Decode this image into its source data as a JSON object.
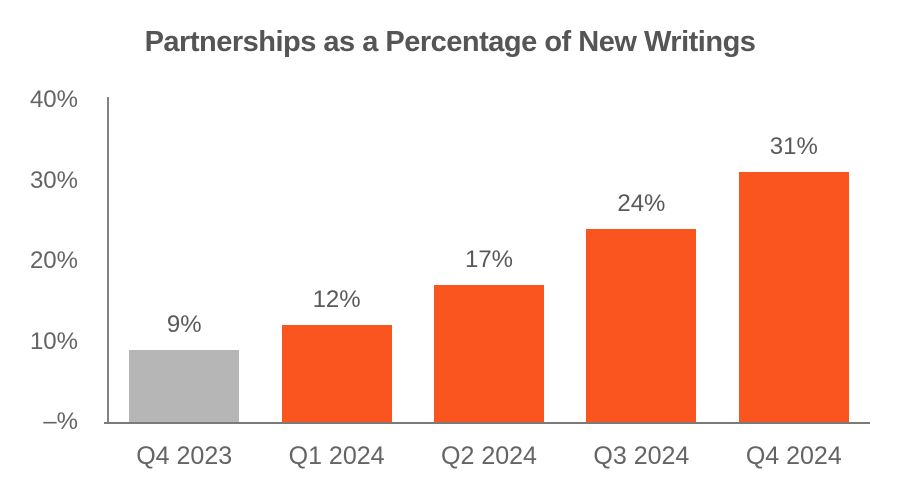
{
  "chart_data": {
    "type": "bar",
    "title": "Partnerships as a Percentage of New Writings",
    "categories": [
      "Q4 2023",
      "Q1 2024",
      "Q2 2024",
      "Q3 2024",
      "Q4 2024"
    ],
    "values": [
      9,
      12,
      17,
      24,
      31
    ],
    "value_labels": [
      "9%",
      "12%",
      "17%",
      "24%",
      "31%"
    ],
    "bar_colors": [
      "#B6B6B6",
      "#FA551E",
      "#FA551E",
      "#FA551E",
      "#FA551E"
    ],
    "xlabel": "",
    "ylabel": "",
    "ylim": [
      0,
      40
    ],
    "yticks": [
      {
        "value": 40,
        "label": "40%"
      },
      {
        "value": 30,
        "label": "30%"
      },
      {
        "value": 20,
        "label": "20%"
      },
      {
        "value": 10,
        "label": "10%"
      },
      {
        "value": 0,
        "label": "–%"
      }
    ],
    "grid": false,
    "legend": false
  },
  "colors": {
    "accent_orange": "#FA551E",
    "prior_period_gray": "#B6B6B6",
    "title_text": "#555555",
    "label_text": "#646464",
    "axis_line": "#7A7A7A"
  }
}
